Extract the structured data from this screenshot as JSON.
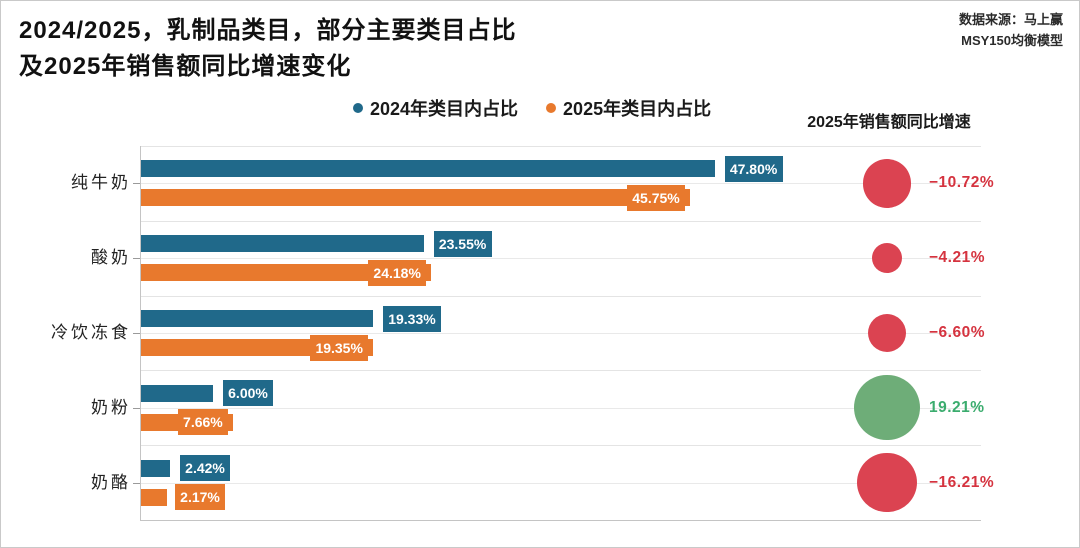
{
  "header": {
    "title_line1": "2024/2025，乳制品类目，部分主要类目占比",
    "title_line2": "及2025年销售额同比增速变化",
    "source_line1": "数据来源：马上赢",
    "source_line2": "MSY150均衡模型"
  },
  "legend": [
    {
      "label": "2024年类目内占比",
      "color": "#20698A"
    },
    {
      "label": "2025年类目内占比",
      "color": "#E8792D"
    }
  ],
  "bubble_header": "2025年销售额同比增速",
  "colors": {
    "series_2024": "#20698A",
    "series_2025": "#E8792D",
    "bubble_negative": "#DB4351",
    "bubble_positive": "#6EAD78",
    "text_negative": "#D5333F",
    "text_positive": "#3BAC6E"
  },
  "chart_data": {
    "type": "bar",
    "orientation": "horizontal",
    "title": "2024/2025，乳制品类目，部分主要类目占比及2025年销售额同比增速变化",
    "categories": [
      "纯牛奶",
      "酸奶",
      "冷饮冻食",
      "奶粉",
      "奶酪"
    ],
    "series": [
      {
        "name": "2024年类目内占比",
        "color": "#20698A",
        "values": [
          47.8,
          23.55,
          19.33,
          6.0,
          2.42
        ],
        "labels": [
          "47.80%",
          "23.55%",
          "19.33%",
          "6.00%",
          "2.42%"
        ]
      },
      {
        "name": "2025年类目内占比",
        "color": "#E8792D",
        "values": [
          45.75,
          24.18,
          19.35,
          7.66,
          2.17
        ],
        "labels": [
          "45.75%",
          "24.18%",
          "19.35%",
          "7.66%",
          "2.17%"
        ]
      }
    ],
    "bubble_series": {
      "name": "2025年销售额同比增速",
      "values": [
        -10.72,
        -4.21,
        -6.6,
        19.21,
        -16.21
      ],
      "labels": [
        "−10.72%",
        "−4.21%",
        "−6.60%",
        "19.21%",
        "−16.21%"
      ]
    },
    "xlim": [
      0,
      70
    ],
    "value_unit": "%",
    "grid": true,
    "legend_position": "top"
  }
}
